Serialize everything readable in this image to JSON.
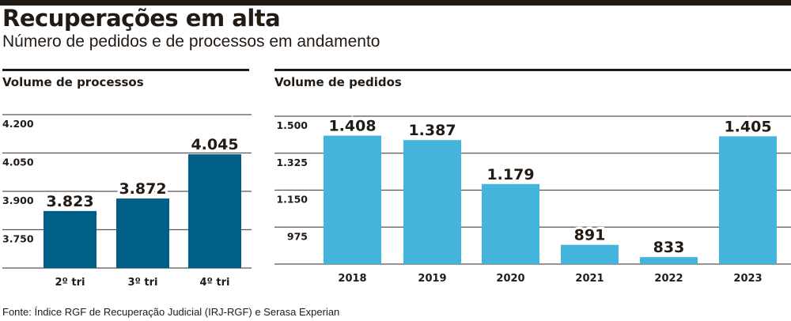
{
  "header": {
    "title": "Recuperações em alta",
    "subtitle": "Número de pedidos e de processos em andamento"
  },
  "colors": {
    "processos_bar": "#005f87",
    "pedidos_bar": "#45b4dd",
    "gridline": "#555555",
    "text": "#231a14"
  },
  "chart_data": [
    {
      "type": "bar",
      "title": "Volume de processos",
      "categories": [
        "2º tri",
        "3º tri",
        "4º tri"
      ],
      "values": [
        3823,
        3872,
        4045
      ],
      "value_labels": [
        "3.823",
        "3.872",
        "4.045"
      ],
      "yticks": [
        4200,
        4050,
        3900,
        3750
      ],
      "ytick_labels": [
        "4.200",
        "4.050",
        "3.900",
        "3.750"
      ],
      "ylim": [
        3600,
        4200
      ],
      "xlabel": "",
      "ylabel": "",
      "grid": true,
      "legend": "none"
    },
    {
      "type": "bar",
      "title": "Volume de pedidos",
      "categories": [
        "2018",
        "2019",
        "2020",
        "2021",
        "2022",
        "2023"
      ],
      "values": [
        1408,
        1387,
        1179,
        891,
        833,
        1405
      ],
      "value_labels": [
        "1.408",
        "1.387",
        "1.179",
        "891",
        "833",
        "1.405"
      ],
      "yticks": [
        1500,
        1325,
        1150,
        975
      ],
      "ytick_labels": [
        "1.500",
        "1.325",
        "1.150",
        "975"
      ],
      "ylim": [
        800,
        1500
      ],
      "xlabel": "",
      "ylabel": "",
      "grid": true,
      "legend": "none"
    }
  ],
  "footer": {
    "source": "Fonte: Índice RGF de Recuperação Judicial (IRJ-RGF) e Serasa Experian"
  }
}
